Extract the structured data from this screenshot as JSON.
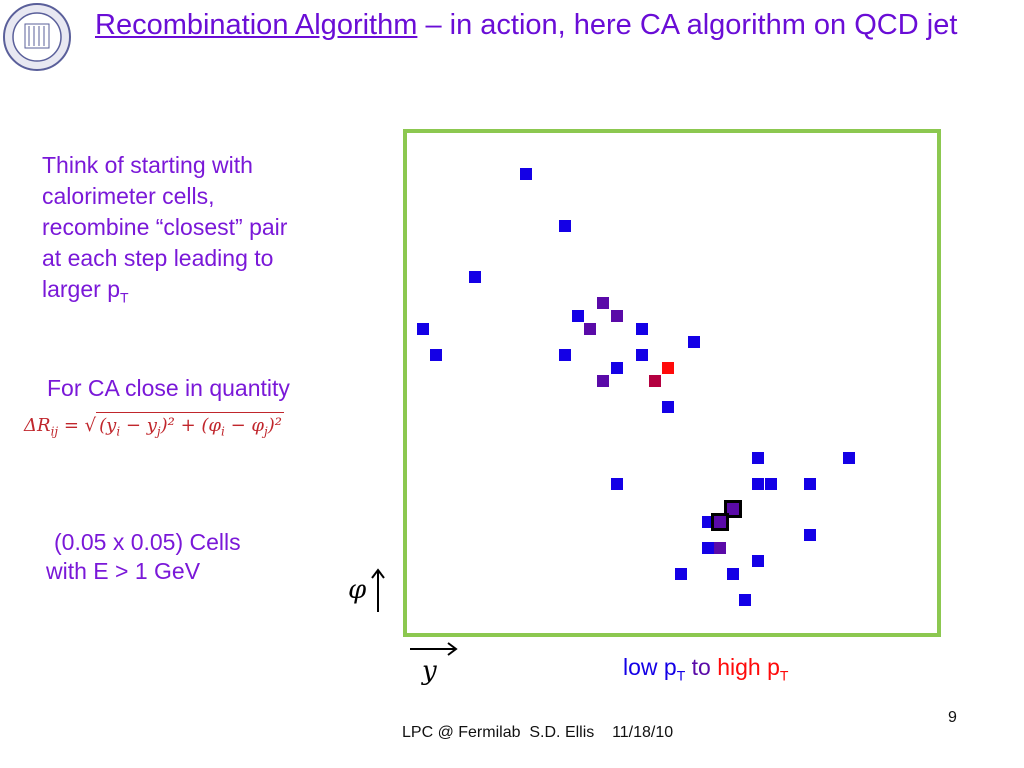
{
  "title": {
    "underlined": "Recombination Algorithm",
    "rest": " – in action, here CA algorithm on QCD jet"
  },
  "logo": {
    "name": "university-seal",
    "text": "University of Washington seal"
  },
  "left": {
    "para1": [
      "Think of starting with",
      "calorimeter cells,",
      "recombine “closest” pair",
      "at each step leading to",
      "larger p"
    ],
    "para1_sub": "T",
    "para2": "For CA close in quantity",
    "formula": {
      "lhs": "ΔR",
      "lhs_sub": "ij",
      "eq": " = √",
      "body": "(y",
      "i": "i",
      "minus1": " − y",
      "j": "j",
      "sq1": ")² + (φ",
      "i2": "i",
      "minus2": " − φ",
      "j2": "j",
      "sq2": ")²"
    },
    "para3": [
      "(0.05 x 0.05) Cells",
      "with E > 1 GeV"
    ]
  },
  "axes": {
    "phi": "φ",
    "y": "y"
  },
  "legend": {
    "low": "low p",
    "low_sub": "T",
    "to": " to ",
    "high": "high p",
    "high_sub": "T"
  },
  "colors": {
    "blue": "#1400e6",
    "purple": "#5a0aa8",
    "red": "#ff0a0a",
    "crimson": "#b40040",
    "green": "#8cc850",
    "title": "#6a0dd6"
  },
  "footer": {
    "text": "LPC @ Fermilab  S.D. Ellis    11/18/10",
    "page": "9"
  }
}
